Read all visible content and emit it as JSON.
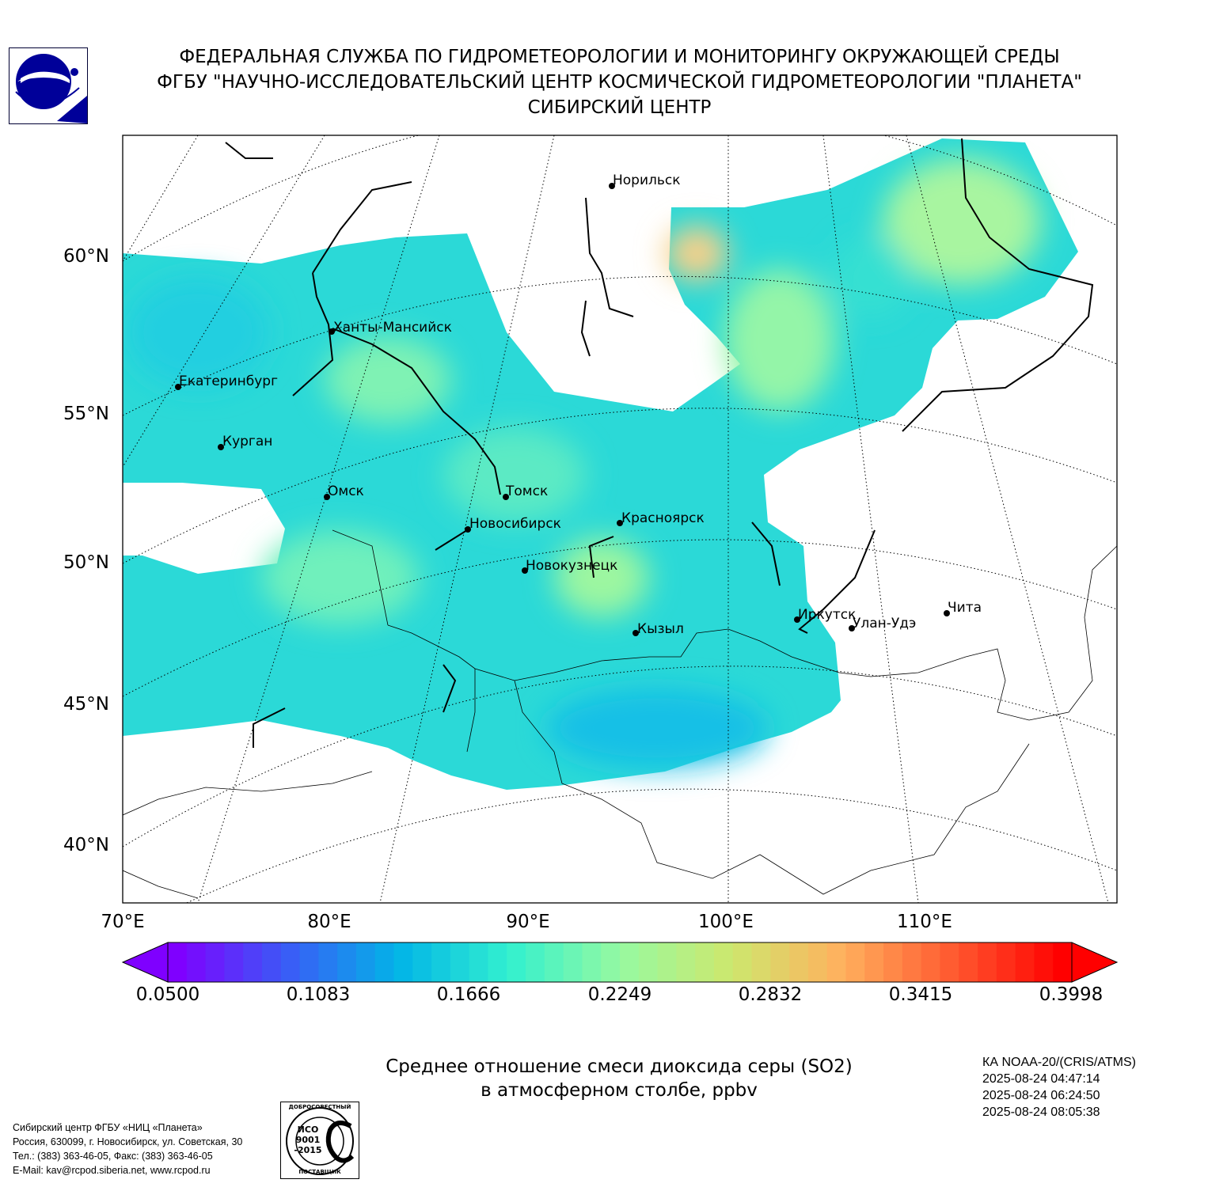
{
  "header": {
    "line1": "ФЕДЕРАЛЬНАЯ СЛУЖБА ПО ГИДРОМЕТЕОРОЛОГИИ И МОНИТОРИНГУ ОКРУЖАЮЩЕЙ СРЕДЫ",
    "line2": "ФГБУ \"НАУЧНО-ИССЛЕДОВАТЕЛЬСКИЙ ЦЕНТР КОСМИЧЕСКОЙ ГИДРОМЕТЕОРОЛОГИИ \"ПЛАНЕТА\"",
    "line3": "СИБИРСКИЙ ЦЕНТР"
  },
  "map": {
    "lat_labels": [
      "60°N",
      "55°N",
      "50°N",
      "45°N",
      "40°N"
    ],
    "lon_labels": [
      "70°E",
      "80°E",
      "90°E",
      "100°E",
      "110°E"
    ],
    "cities": [
      {
        "name": "Норильск"
      },
      {
        "name": "Ханты-Мансийск"
      },
      {
        "name": "Екатеринбург"
      },
      {
        "name": "Курган"
      },
      {
        "name": "Омск"
      },
      {
        "name": "Томск"
      },
      {
        "name": "Новосибирск"
      },
      {
        "name": "Красноярск"
      },
      {
        "name": "Новокузнецк"
      },
      {
        "name": "Иркутск"
      },
      {
        "name": "Улан-Удэ"
      },
      {
        "name": "Чита"
      },
      {
        "name": "Кызыл"
      }
    ]
  },
  "colorbar": {
    "ticks": [
      "0.0500",
      "0.1083",
      "0.1666",
      "0.2249",
      "0.2832",
      "0.3415",
      "0.3998"
    ],
    "colors": [
      "#7f00ff",
      "#3a5cf6",
      "#02b4e7",
      "#32f0cf",
      "#96f9a1",
      "#cde86e",
      "#ffb15e",
      "#ff5a30",
      "#ff0000"
    ]
  },
  "title": {
    "line1": "Среднее отношение смеси диоксида серы (SO2)",
    "line2": "в атмосферном столбе, ppbv"
  },
  "satellite": {
    "name": "КА NOAA-20/(CRIS/ATMS)",
    "times": [
      "2025-08-24 04:47:14",
      "2025-08-24 06:24:50",
      "2025-08-24 08:05:38"
    ]
  },
  "footer": {
    "lines": [
      "Сибирский центр ФГБУ «НИЦ «Планета»",
      "Россия, 630099, г. Новосибирск, ул. Советская, 30",
      "Тел.: (383) 363-46-05, Факс: (383) 363-46-05",
      "E-Mail: kav@rcpod.siberia.net, www.rcpod.ru"
    ]
  },
  "iso_logo": {
    "top": "ДОБРОСОВЕСТНЫЙ",
    "bottom": "ПОСТАВЩИК",
    "text1": "ИСО",
    "text2": "9001",
    "text3": "-2015"
  }
}
